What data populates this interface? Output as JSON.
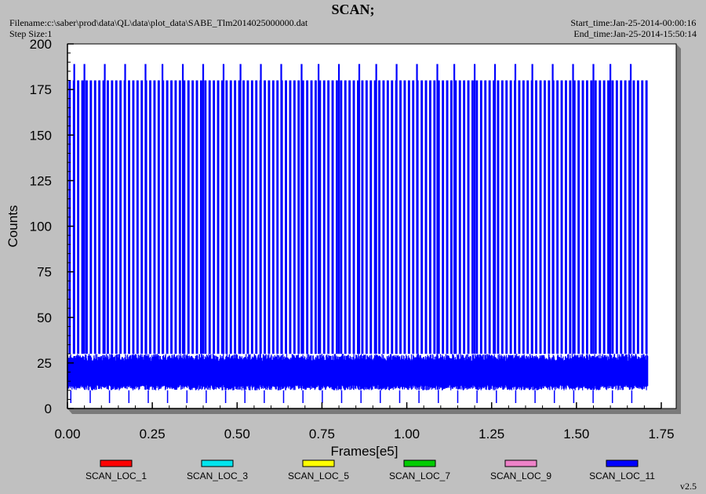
{
  "header": {
    "title": "SCAN;",
    "filename": "Filename:c:\\saber\\prod\\data\\QL\\data\\plot_data\\SABE_Tlm2014025000000.dat",
    "step_size": "Step Size:1",
    "start_time": "Start_time:Jan-25-2014-00:00:16",
    "end_time": "End_time:Jan-25-2014-15:50:14"
  },
  "footer": {
    "version": "v2.5"
  },
  "chart_data": {
    "type": "line",
    "title": "SCAN;",
    "xlabel": "Frames[e5]",
    "ylabel": "Counts",
    "xlim": [
      0,
      1.75
    ],
    "ylim": [
      0,
      200
    ],
    "xticks": [
      "0.00",
      "0.25",
      "0.50",
      "0.75",
      "1.00",
      "1.25",
      "1.50",
      "1.75"
    ],
    "yticks": [
      "0",
      "25",
      "50",
      "75",
      "100",
      "125",
      "150",
      "175",
      "200"
    ],
    "legend_position": "bottom",
    "legend": [
      {
        "name": "SCAN_LOC_1",
        "color": "#ff0000"
      },
      {
        "name": "SCAN_LOC_3",
        "color": "#00e5ee"
      },
      {
        "name": "SCAN_LOC_5",
        "color": "#ffff00"
      },
      {
        "name": "SCAN_LOC_7",
        "color": "#00cc00"
      },
      {
        "name": "SCAN_LOC_9",
        "color": "#ee82c8"
      },
      {
        "name": "SCAN_LOC_11",
        "color": "#0000ff"
      }
    ],
    "dominant_series": {
      "name": "SCAN_LOC_11",
      "color": "#0000ff",
      "x_range": [
        0.0,
        1.71
      ],
      "baseline_band": [
        10,
        30
      ],
      "spike_peak": 180,
      "spike_spacing": 0.0125,
      "tall_spike_peak": 189,
      "tall_spike_x": [
        0.02,
        0.05,
        0.11,
        0.17,
        0.23,
        0.28,
        0.34,
        0.4,
        0.46,
        0.51,
        0.57,
        0.63,
        0.69,
        0.74,
        0.8,
        0.86,
        0.91,
        0.97,
        1.03,
        1.09,
        1.14,
        1.2,
        1.26,
        1.32,
        1.37,
        1.43,
        1.49,
        1.55,
        1.6,
        1.66
      ]
    }
  }
}
